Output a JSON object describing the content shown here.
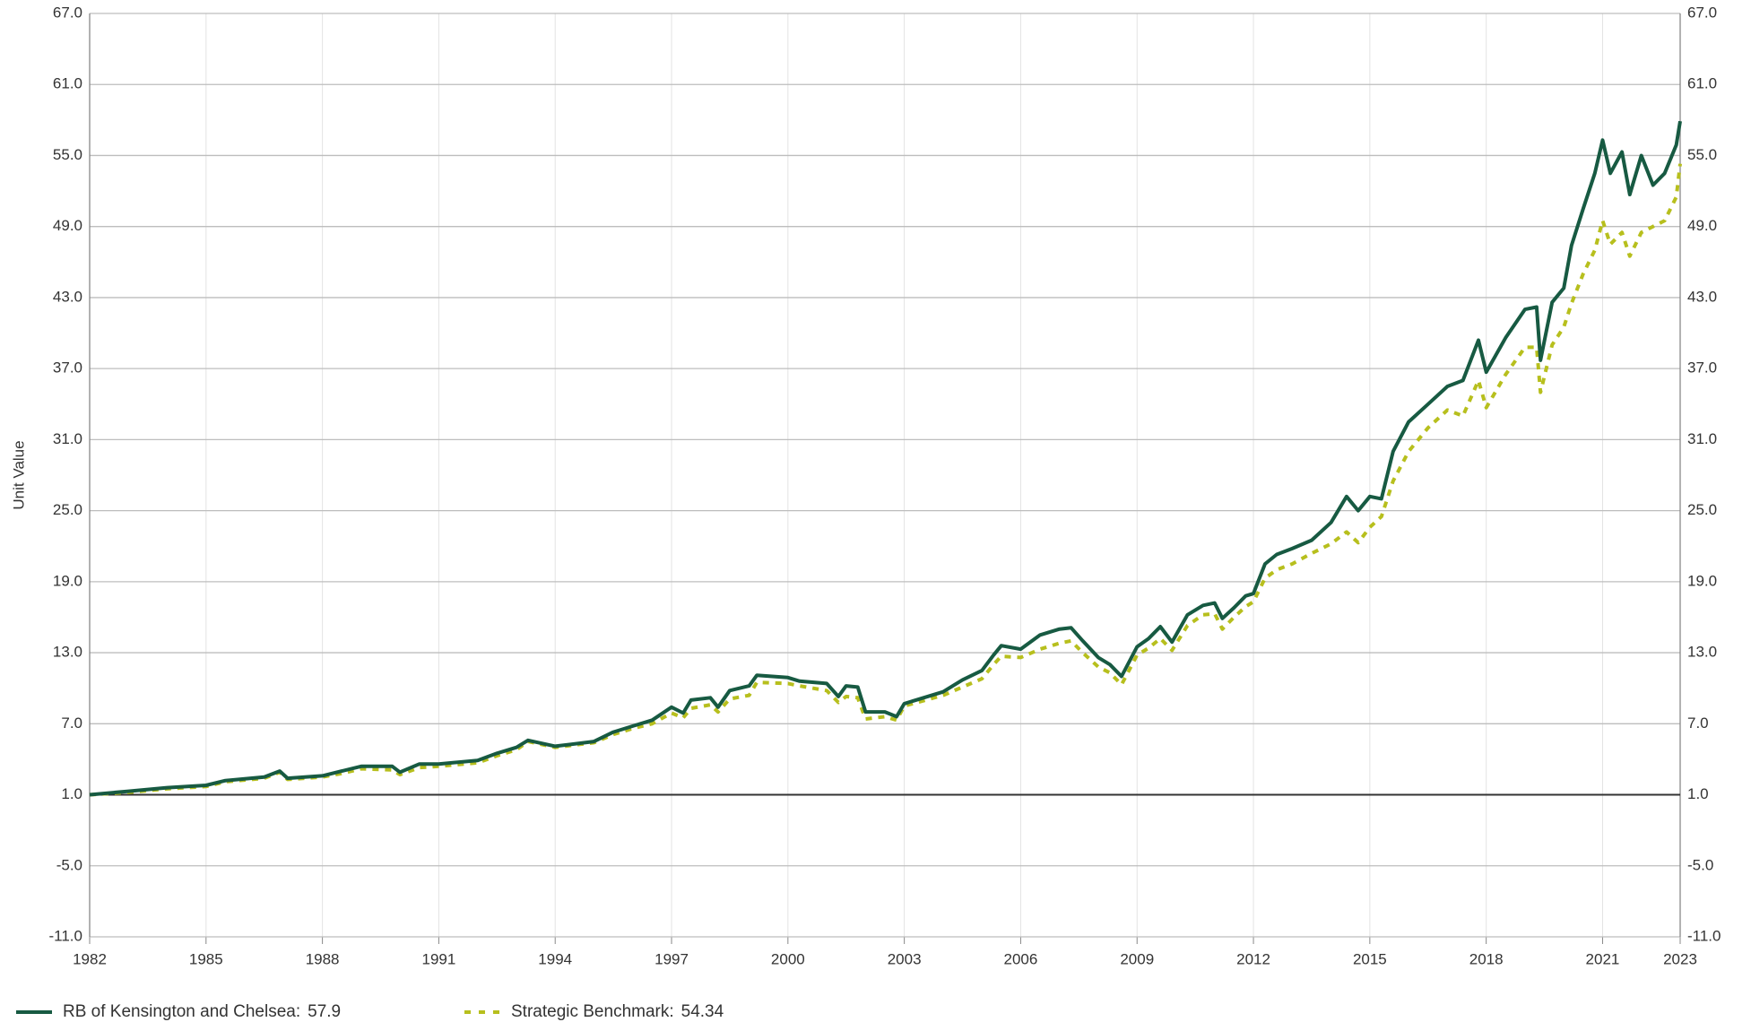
{
  "chart_data": {
    "type": "line",
    "y_label": "Unit Value",
    "x": [
      1982,
      1983,
      1984,
      1985,
      1985.5,
      1986.5,
      1986.9,
      1987.1,
      1988,
      1988.5,
      1989,
      1989.8,
      1990,
      1990.5,
      1991,
      1992,
      1992.5,
      1993,
      1993.3,
      1994,
      1995,
      1995.5,
      1996,
      1996.5,
      1997,
      1997.3,
      1997.5,
      1998,
      1998.2,
      1998.5,
      1999,
      1999.2,
      2000,
      2000.3,
      2001,
      2001.3,
      2001.5,
      2001.8,
      2002,
      2002.5,
      2002.8,
      2003,
      2004,
      2004.5,
      2005,
      2005.3,
      2005.5,
      2006,
      2006.5,
      2007,
      2007.3,
      2007.6,
      2008,
      2008.3,
      2008.6,
      2009,
      2009.3,
      2009.6,
      2009.9,
      2010.3,
      2010.7,
      2011,
      2011.2,
      2011.5,
      2011.8,
      2012,
      2012.3,
      2012.6,
      2013,
      2013.5,
      2014,
      2014.4,
      2014.7,
      2015,
      2015.3,
      2015.6,
      2016,
      2016.5,
      2017,
      2017.4,
      2017.8,
      2018,
      2018.5,
      2019,
      2019.3,
      2019.4,
      2019.7,
      2020,
      2020.2,
      2020.5,
      2020.8,
      2021,
      2021.2,
      2021.5,
      2021.7,
      2022,
      2022.3,
      2022.6,
      2022.9,
      2023
    ],
    "series": [
      {
        "name": "RB of Kensington and Chelsea:",
        "legend_value": 57.9,
        "color": "#175a42",
        "dashed": false,
        "values": [
          1.0,
          1.3,
          1.6,
          1.8,
          2.2,
          2.5,
          3.0,
          2.4,
          2.6,
          3.0,
          3.4,
          3.4,
          2.9,
          3.6,
          3.6,
          3.9,
          4.5,
          5.0,
          5.6,
          5.1,
          5.5,
          6.3,
          6.8,
          7.3,
          8.4,
          7.9,
          9.0,
          9.2,
          8.4,
          9.8,
          10.2,
          11.1,
          10.9,
          10.6,
          10.4,
          9.3,
          10.2,
          10.1,
          8.0,
          8.0,
          7.6,
          8.7,
          9.7,
          10.7,
          11.5,
          12.8,
          13.6,
          13.3,
          14.5,
          15.0,
          15.1,
          14.0,
          12.6,
          12.0,
          11.0,
          13.5,
          14.2,
          15.2,
          13.9,
          16.2,
          17.0,
          17.2,
          15.9,
          16.8,
          17.8,
          18.0,
          20.5,
          21.3,
          21.8,
          22.5,
          24.0,
          26.2,
          25.0,
          26.2,
          26.0,
          30.0,
          32.5,
          34.0,
          35.5,
          36.0,
          39.4,
          36.7,
          39.6,
          42.0,
          42.2,
          37.7,
          42.6,
          43.8,
          47.4,
          50.5,
          53.5,
          56.3,
          53.5,
          55.3,
          51.7,
          55.0,
          52.5,
          53.5,
          55.9,
          57.9
        ]
      },
      {
        "name": "Strategic Benchmark:",
        "legend_value": 54.34,
        "color": "#b7bf1d",
        "dashed": true,
        "values": [
          1.0,
          1.2,
          1.5,
          1.7,
          2.1,
          2.4,
          2.9,
          2.3,
          2.5,
          2.8,
          3.2,
          3.1,
          2.7,
          3.3,
          3.4,
          3.7,
          4.3,
          4.8,
          5.5,
          5.0,
          5.4,
          6.1,
          6.6,
          7.0,
          7.9,
          7.5,
          8.3,
          8.6,
          8.0,
          9.1,
          9.4,
          10.5,
          10.4,
          10.2,
          9.8,
          8.8,
          9.3,
          9.2,
          7.4,
          7.6,
          7.3,
          8.5,
          9.4,
          10.1,
          10.8,
          12.0,
          12.7,
          12.6,
          13.3,
          13.8,
          14.0,
          13.0,
          11.8,
          11.3,
          10.3,
          12.8,
          13.4,
          14.2,
          13.2,
          15.3,
          16.2,
          16.3,
          15.0,
          16.0,
          16.9,
          17.3,
          19.3,
          20.0,
          20.5,
          21.4,
          22.2,
          23.2,
          22.3,
          23.6,
          24.5,
          27.5,
          30.0,
          32.0,
          33.5,
          33.0,
          36.0,
          33.7,
          36.5,
          38.8,
          38.8,
          35.0,
          39.0,
          40.5,
          42.5,
          45.0,
          47.0,
          49.5,
          47.5,
          48.5,
          46.5,
          48.5,
          49.0,
          49.5,
          51.5,
          54.3
        ]
      }
    ],
    "xlim": [
      1982,
      2023
    ],
    "xticks": [
      1982,
      1985,
      1988,
      1991,
      1994,
      1997,
      2000,
      2003,
      2006,
      2009,
      2012,
      2015,
      2018,
      2021,
      2023
    ],
    "ylim": [
      -11,
      67
    ],
    "yticks": [
      {
        "value": -11,
        "label": "-11.0"
      },
      {
        "value": -5,
        "label": "-5.0"
      },
      {
        "value": 1,
        "label": "1.0"
      },
      {
        "value": 7,
        "label": "7.0"
      },
      {
        "value": 13,
        "label": "13.0"
      },
      {
        "value": 19,
        "label": "19.0"
      },
      {
        "value": 25,
        "label": "25.0"
      },
      {
        "value": 31,
        "label": "31.0"
      },
      {
        "value": 37,
        "label": "37.0"
      },
      {
        "value": 43,
        "label": "43.0"
      },
      {
        "value": 49,
        "label": "49.0"
      },
      {
        "value": 55,
        "label": "55.0"
      },
      {
        "value": 61,
        "label": "61.0"
      },
      {
        "value": 67,
        "label": "67.0"
      }
    ],
    "baseline": 1,
    "grid": true,
    "legend": "bottom-left"
  }
}
